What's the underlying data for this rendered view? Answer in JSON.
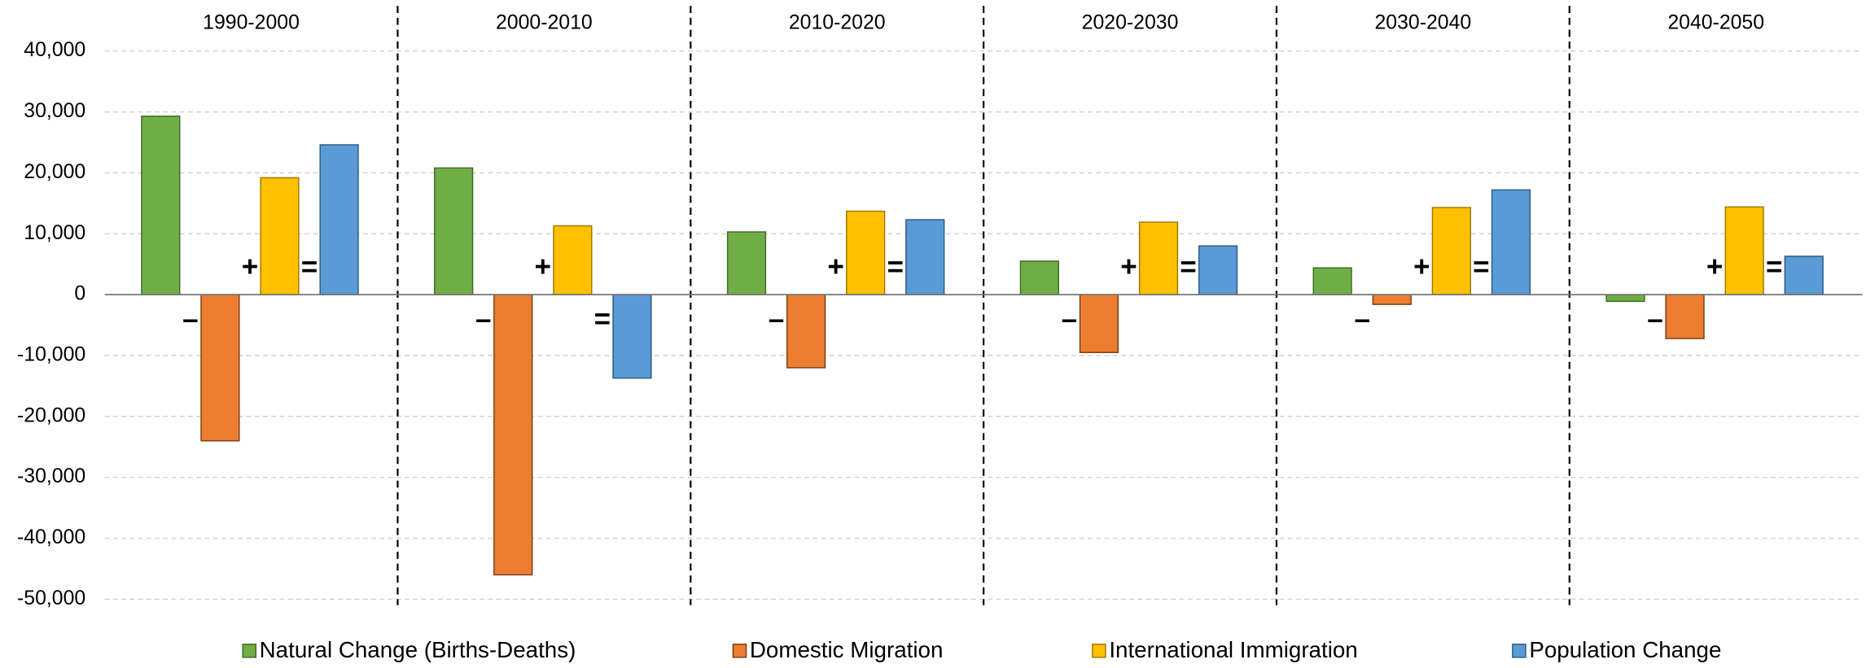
{
  "chart_data": {
    "type": "bar",
    "categories": [
      "1990-2000",
      "2000-2010",
      "2010-2020",
      "2020-2030",
      "2030-2040",
      "2040-2050"
    ],
    "series": [
      {
        "name": "Natural Change (Births-Deaths)",
        "color": "#70ad47",
        "values": [
          29300,
          20800,
          10300,
          5500,
          4400,
          -1100
        ]
      },
      {
        "name": "Domestic Migration",
        "color": "#ed7d31",
        "values": [
          -24000,
          -46000,
          -12000,
          -9500,
          -1600,
          -7200
        ]
      },
      {
        "name": "International Immigration",
        "color": "#ffc000",
        "values": [
          19200,
          11300,
          13700,
          11900,
          14300,
          14400
        ]
      },
      {
        "name": "Population Change",
        "color": "#5b9bd5",
        "values": [
          24600,
          -13700,
          12300,
          8000,
          17200,
          6300
        ]
      }
    ],
    "annotations": [
      "–",
      "+",
      "="
    ],
    "ylim": [
      -50000,
      40000
    ],
    "yticks": [
      {
        "value": -50000,
        "label": "-50,000"
      },
      {
        "value": -40000,
        "label": "-40,000"
      },
      {
        "value": -30000,
        "label": "-30,000"
      },
      {
        "value": -20000,
        "label": "-20,000"
      },
      {
        "value": -10000,
        "label": "-10,000"
      },
      0,
      {
        "value": 10000,
        "label": "10,000"
      },
      {
        "value": 20000,
        "label": "20,000"
      },
      {
        "value": 30000,
        "label": "30,000"
      },
      {
        "value": 40000,
        "label": "40,000"
      }
    ],
    "grid": true,
    "legend": "bottom"
  }
}
